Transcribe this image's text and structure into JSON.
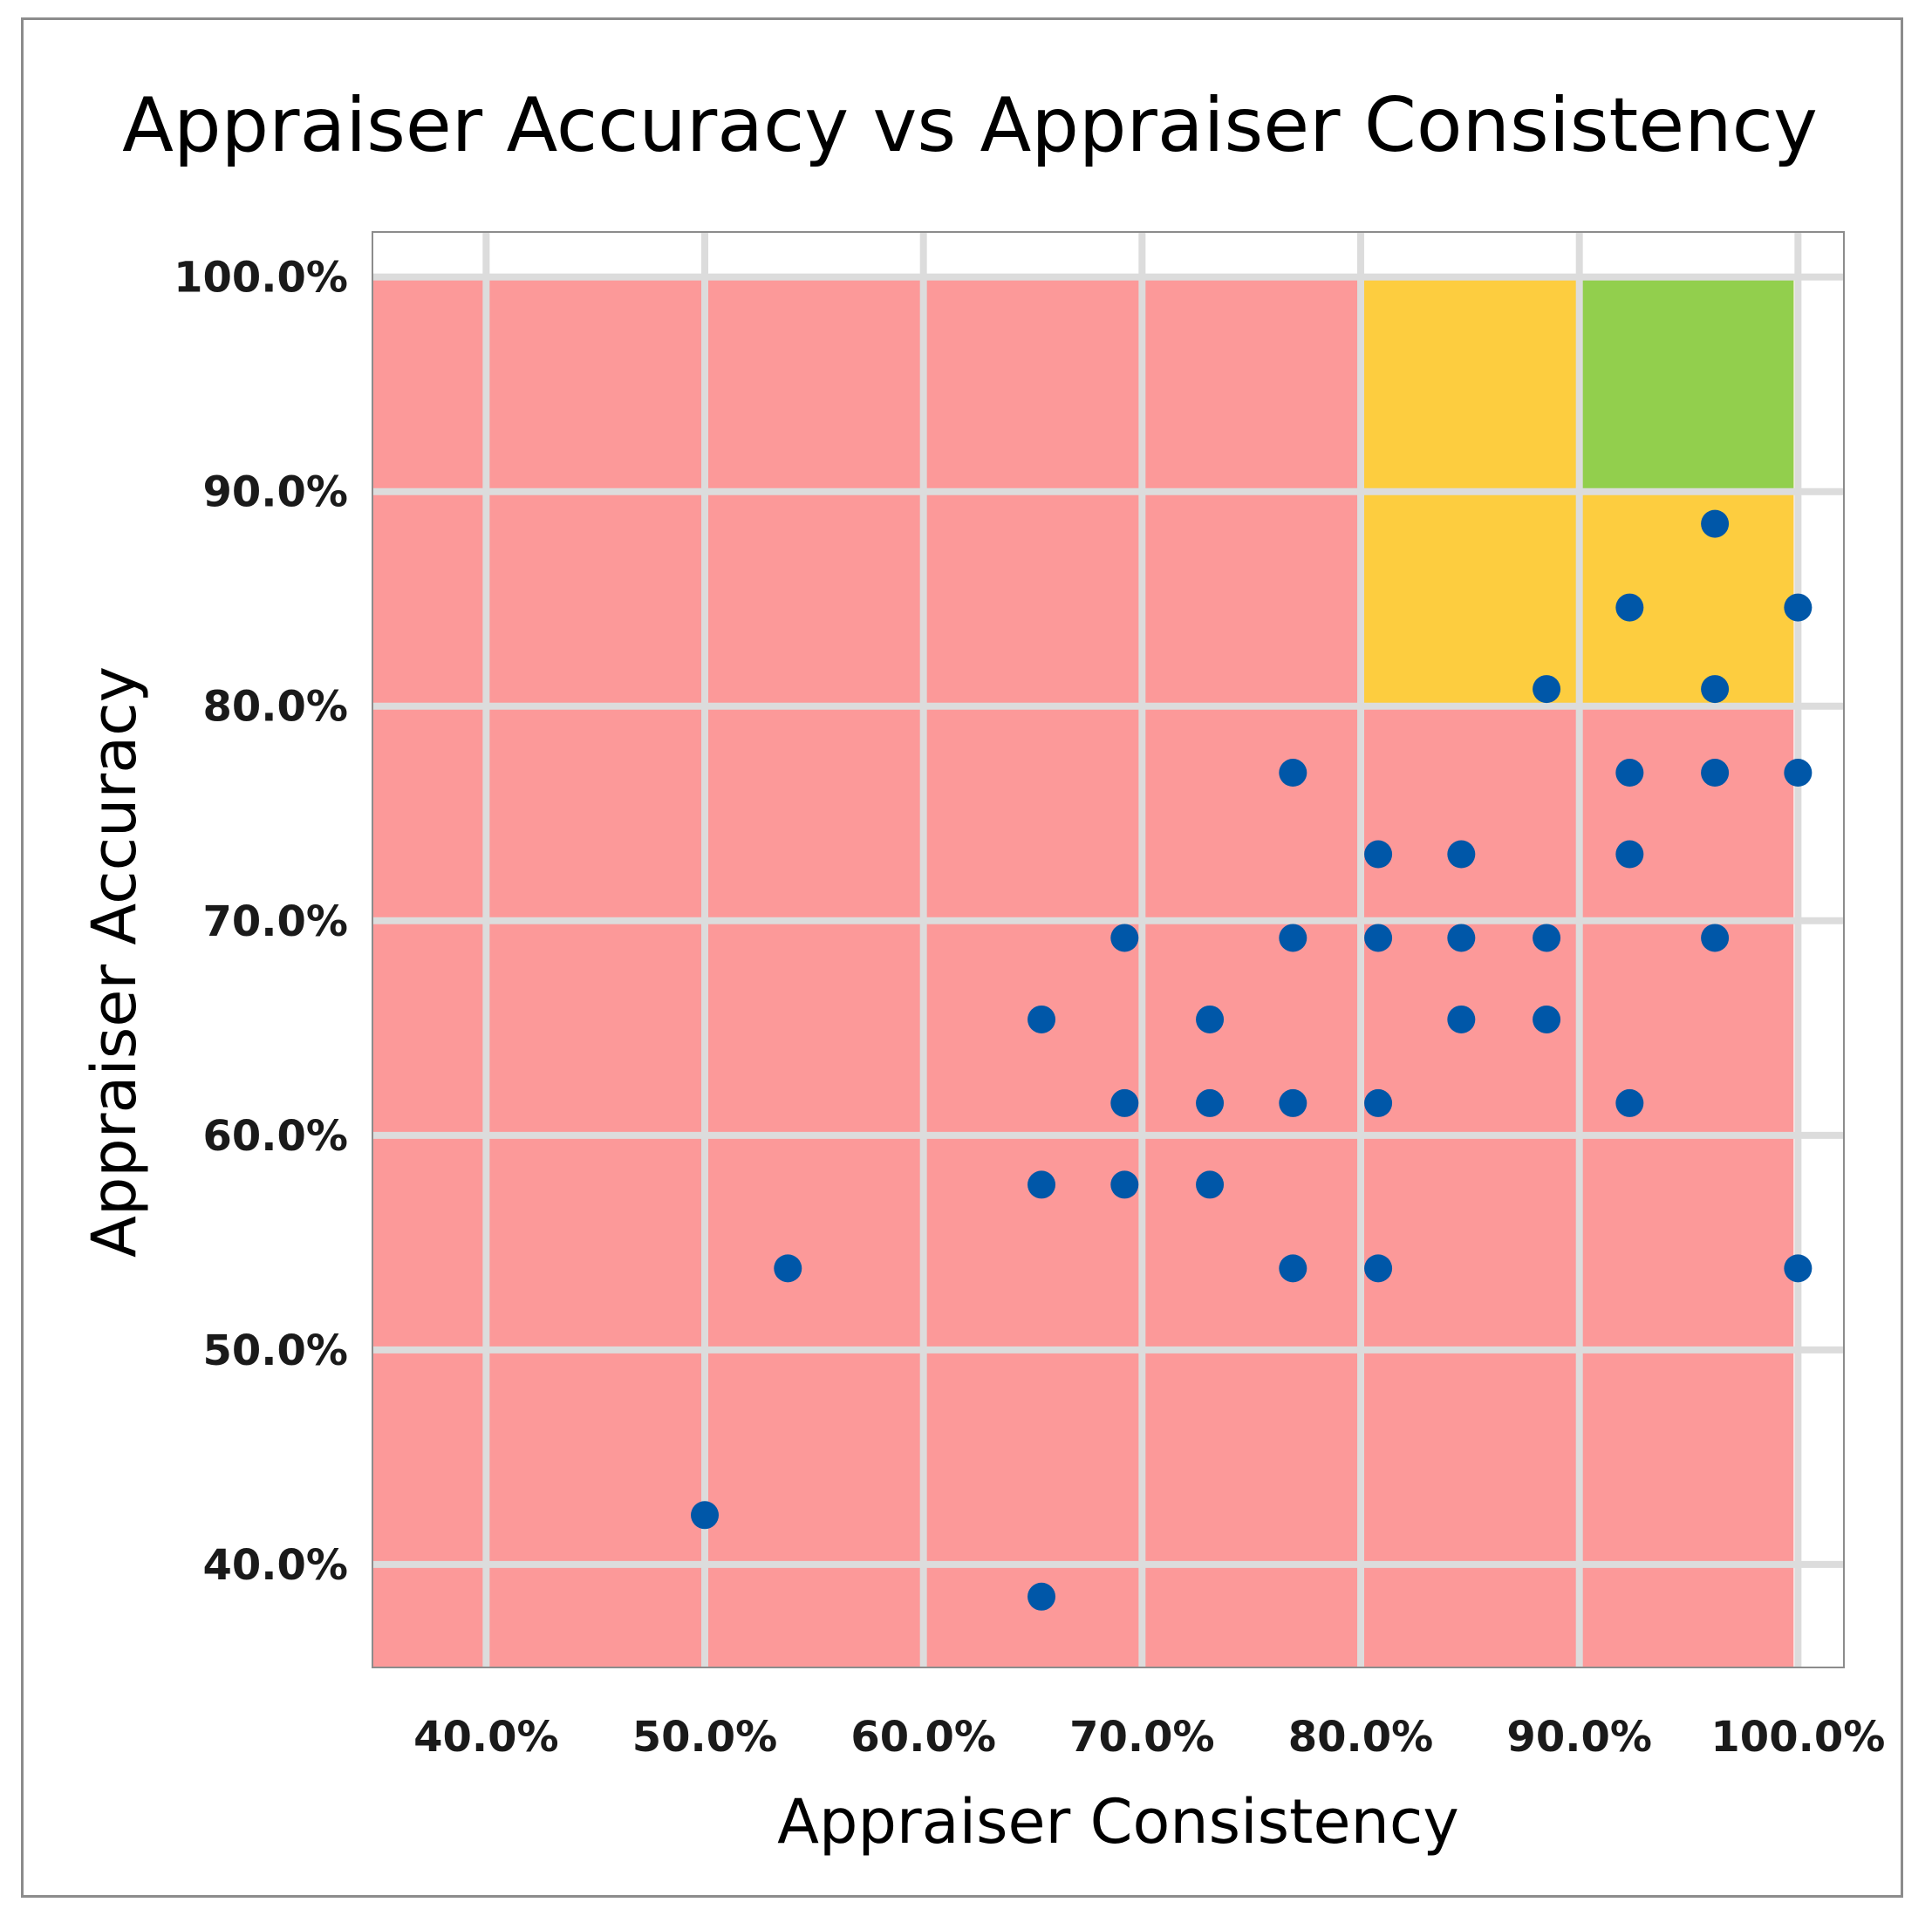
{
  "chart_data": {
    "type": "scatter",
    "title": "Appraiser Accuracy vs Appraiser Consistency",
    "xlabel": "Appraiser Consistency",
    "ylabel": "Appraiser Accuracy",
    "xlim": [
      34.8,
      102.1
    ],
    "ylim": [
      35.2,
      102.1
    ],
    "xticks": [
      40,
      50,
      60,
      70,
      80,
      90,
      100
    ],
    "yticks": [
      40,
      50,
      60,
      70,
      80,
      90,
      100
    ],
    "xtick_labels": [
      "40.0%",
      "50.0%",
      "60.0%",
      "70.0%",
      "80.0%",
      "90.0%",
      "100.0%"
    ],
    "ytick_labels": [
      "40.0%",
      "50.0%",
      "60.0%",
      "70.0%",
      "80.0%",
      "90.0%",
      "100.0%"
    ],
    "grid": true,
    "legend": "none",
    "colors": {
      "marker": "#0057a8",
      "red_zone": "#fc9999",
      "yellow_zone": "#fdcd3f",
      "green_zone": "#92cf4d",
      "grid": "#dcdcdc",
      "frame": "#8c8c8c"
    },
    "zones": [
      {
        "color": "red_zone",
        "x": [
          34.8,
          99.8
        ],
        "y": [
          35.2,
          100
        ]
      },
      {
        "color": "yellow_zone",
        "x": [
          80,
          99.8
        ],
        "y": [
          80,
          100
        ]
      },
      {
        "color": "green_zone",
        "x": [
          90,
          99.8
        ],
        "y": [
          90,
          100
        ]
      }
    ],
    "series": [
      {
        "x": [
          96.2,
          92.3,
          100,
          88.5,
          96.2,
          76.9,
          92.3,
          96.2,
          100,
          80.8,
          84.6,
          92.3,
          69.2,
          76.9,
          80.8,
          84.6,
          88.5,
          96.2,
          65.4,
          73.1,
          84.6,
          88.5,
          69.2,
          73.1,
          76.9,
          80.8,
          92.3,
          65.4,
          69.2,
          73.1,
          53.8,
          76.9,
          80.8,
          100,
          50,
          65.4
        ],
        "y": [
          88.5,
          84.6,
          84.6,
          80.8,
          80.8,
          76.9,
          76.9,
          76.9,
          76.9,
          73.1,
          73.1,
          73.1,
          69.2,
          69.2,
          69.2,
          69.2,
          69.2,
          69.2,
          65.4,
          65.4,
          65.4,
          65.4,
          61.5,
          61.5,
          61.5,
          61.5,
          61.5,
          57.7,
          57.7,
          57.7,
          53.8,
          53.8,
          53.8,
          53.8,
          42.3,
          38.5
        ]
      }
    ]
  }
}
